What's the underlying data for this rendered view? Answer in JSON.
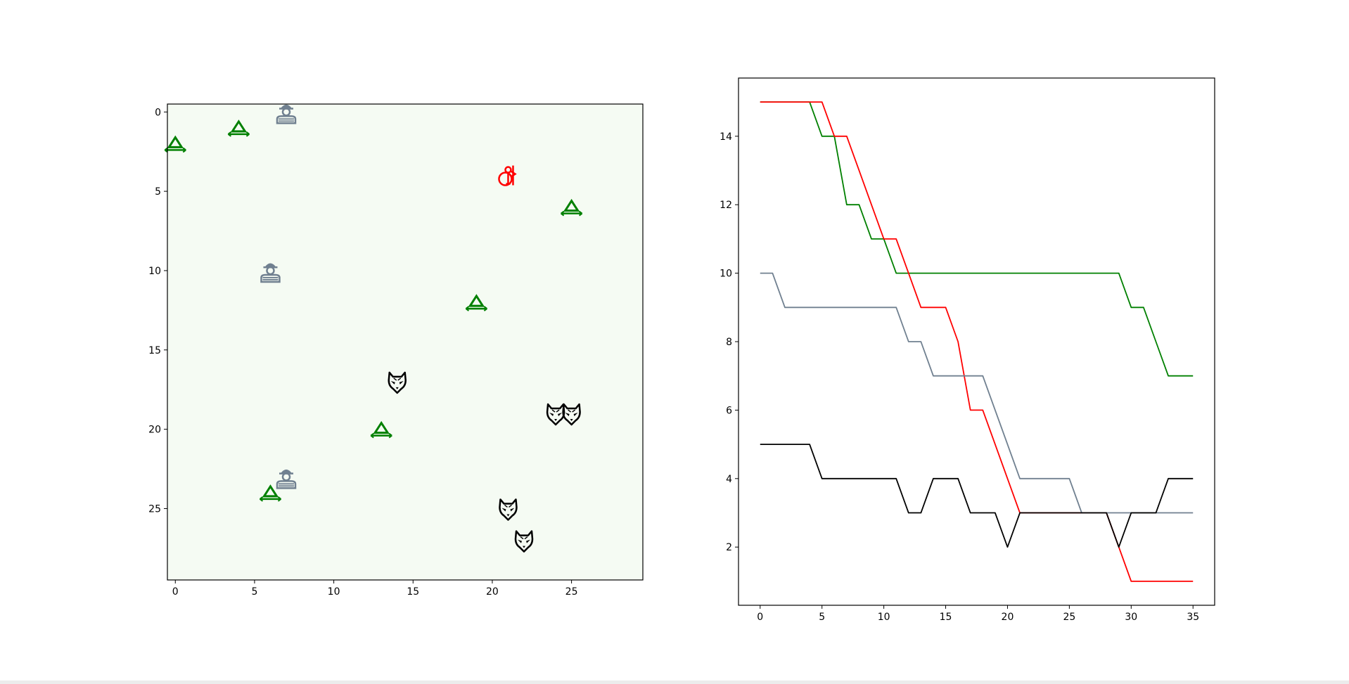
{
  "chart_data": [
    {
      "type": "scatter",
      "xlim": [
        -0.5,
        29.5
      ],
      "ylim": [
        29.5,
        -0.5
      ],
      "y_inverted": true,
      "xticks": [
        0,
        5,
        10,
        15,
        20,
        25
      ],
      "yticks": [
        0,
        5,
        10,
        15,
        20,
        25
      ],
      "background_color": "#f5fbf3",
      "grid": false,
      "series": [
        {
          "icon": "tree-icon",
          "color": "#008000",
          "points": [
            [
              0,
              2
            ],
            [
              4,
              1
            ],
            [
              6,
              24
            ],
            [
              13,
              20
            ],
            [
              19,
              12
            ],
            [
              25,
              6
            ]
          ]
        },
        {
          "icon": "hunter-icon",
          "color": "#708090",
          "points": [
            [
              7,
              0
            ],
            [
              6,
              10
            ],
            [
              7,
              23
            ]
          ]
        },
        {
          "icon": "wolf-icon",
          "color": "#000000",
          "points": [
            [
              14,
              17
            ],
            [
              24,
              19
            ],
            [
              25,
              19
            ],
            [
              21,
              25
            ],
            [
              22,
              27
            ]
          ]
        },
        {
          "icon": "red-riding-hood-icon",
          "color": "#ff0000",
          "points": [
            [
              21,
              4
            ]
          ]
        }
      ]
    },
    {
      "type": "line",
      "xlim": [
        -1.75,
        36.75
      ],
      "ylim": [
        0.3,
        15.7
      ],
      "xticks": [
        0,
        5,
        10,
        15,
        20,
        25,
        30,
        35
      ],
      "yticks": [
        2,
        4,
        6,
        8,
        10,
        12,
        14
      ],
      "grid": false,
      "x": [
        0,
        1,
        2,
        3,
        4,
        5,
        6,
        7,
        8,
        9,
        10,
        11,
        12,
        13,
        14,
        15,
        16,
        17,
        18,
        19,
        20,
        21,
        22,
        23,
        24,
        25,
        26,
        27,
        28,
        29,
        30,
        31,
        32,
        33,
        34,
        35
      ],
      "series": [
        {
          "color": "#008000",
          "values": [
            15,
            15,
            15,
            15,
            15,
            14,
            14,
            12,
            12,
            11,
            11,
            10,
            10,
            10,
            10,
            10,
            10,
            10,
            10,
            10,
            10,
            10,
            10,
            10,
            10,
            10,
            10,
            10,
            10,
            10,
            9,
            9,
            8,
            7,
            7,
            7
          ]
        },
        {
          "color": "#ff0000",
          "values": [
            15,
            15,
            15,
            15,
            15,
            15,
            14,
            14,
            13,
            12,
            11,
            11,
            10,
            9,
            9,
            9,
            8,
            6,
            6,
            5,
            4,
            3,
            3,
            3,
            3,
            3,
            3,
            3,
            3,
            2,
            1,
            1,
            1,
            1,
            1,
            1
          ]
        },
        {
          "color": "#708090",
          "values": [
            10,
            10,
            9,
            9,
            9,
            9,
            9,
            9,
            9,
            9,
            9,
            9,
            8,
            8,
            7,
            7,
            7,
            7,
            7,
            6,
            5,
            4,
            4,
            4,
            4,
            4,
            3,
            3,
            3,
            3,
            3,
            3,
            3,
            3,
            3,
            3
          ]
        },
        {
          "color": "#000000",
          "values": [
            5,
            5,
            5,
            5,
            5,
            4,
            4,
            4,
            4,
            4,
            4,
            4,
            3,
            3,
            4,
            4,
            4,
            3,
            3,
            3,
            2,
            3,
            3,
            3,
            3,
            3,
            3,
            3,
            3,
            2,
            3,
            3,
            3,
            4,
            4,
            4
          ]
        }
      ]
    }
  ]
}
